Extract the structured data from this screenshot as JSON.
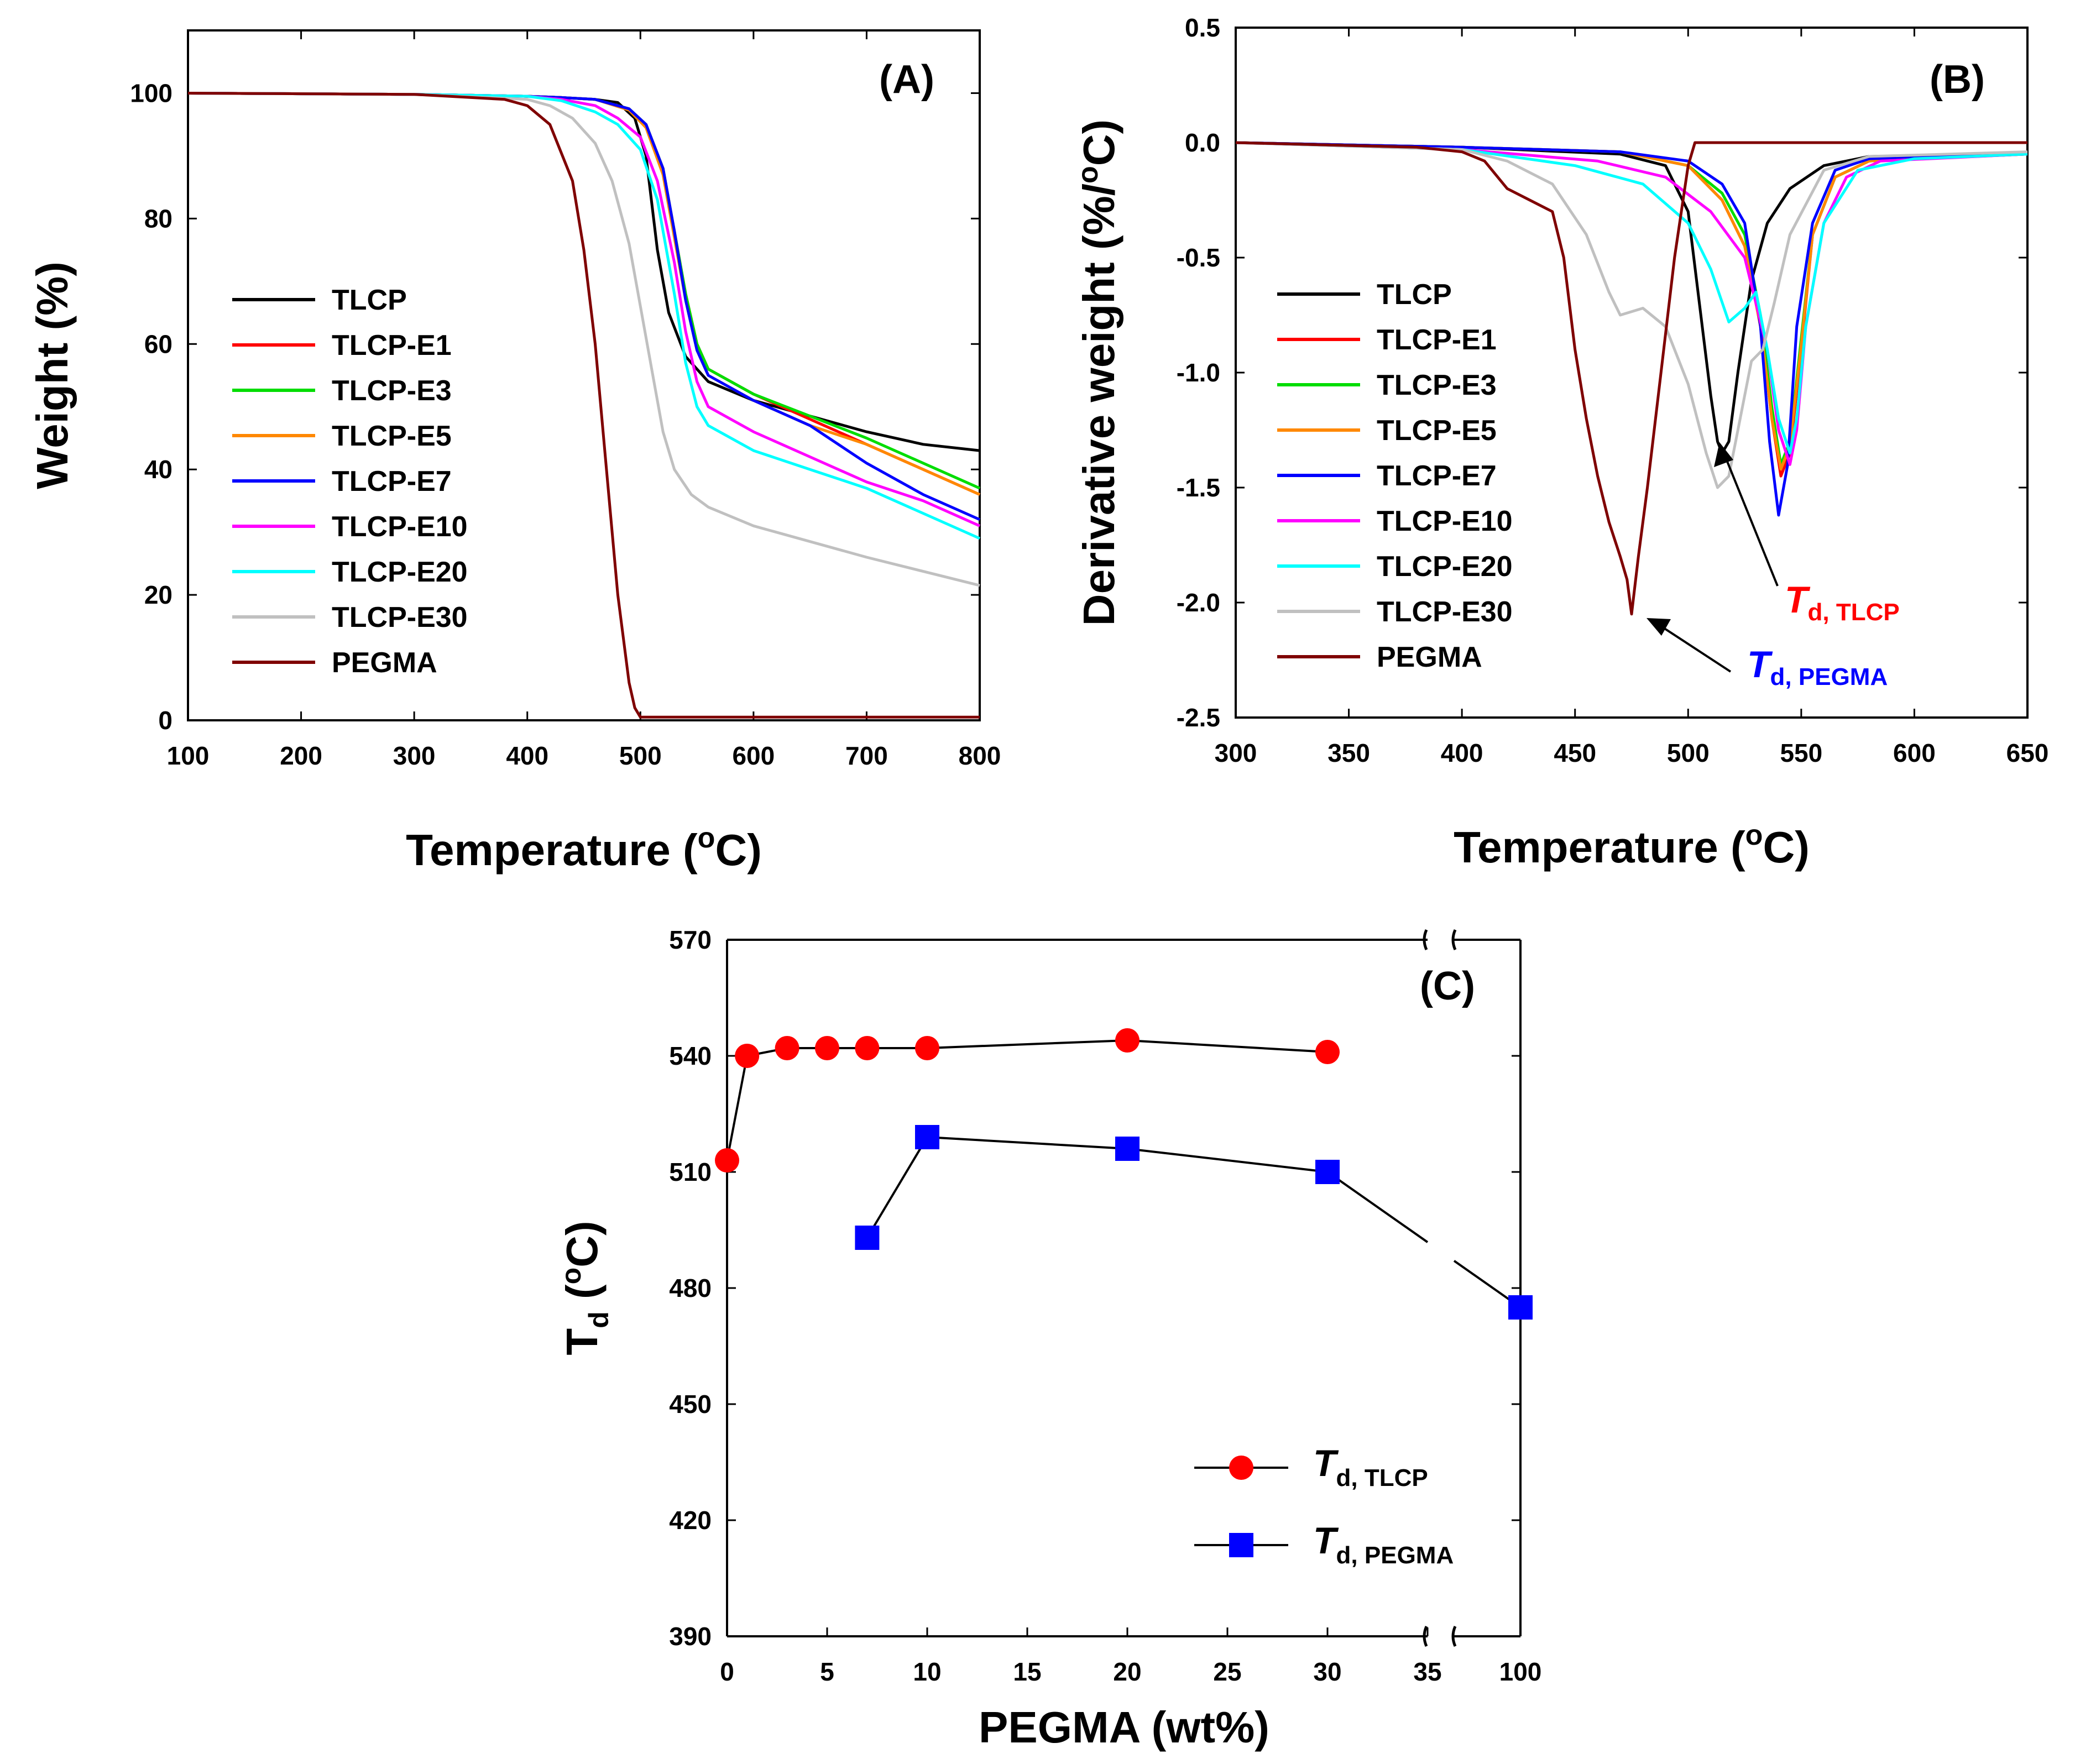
{
  "colors": {
    "TLCP": "#000000",
    "TLCP-E1": "#ff0000",
    "TLCP-E3": "#00dd00",
    "TLCP-E5": "#ff8800",
    "TLCP-E7": "#0000ff",
    "TLCP-E10": "#ff00ff",
    "TLCP-E20": "#00ffff",
    "TLCP-E30": "#c0c0c0",
    "PEGMA": "#7f0000",
    "td_tlcp": "#ff0000",
    "td_pegma": "#0000ff"
  },
  "chart_data": [
    {
      "id": "A",
      "type": "line",
      "panel_label": "(A)",
      "xlabel": "Temperature (oC)",
      "ylabel": "Weight (%)",
      "xlim": [
        100,
        800
      ],
      "ylim": [
        0,
        110
      ],
      "xticks": [
        100,
        200,
        300,
        400,
        500,
        600,
        700,
        800
      ],
      "yticks": [
        0,
        20,
        40,
        60,
        80,
        100
      ],
      "legend_position": "left",
      "series": [
        {
          "name": "TLCP",
          "x": [
            100,
            300,
            400,
            430,
            460,
            480,
            495,
            505,
            515,
            525,
            540,
            560,
            600,
            650,
            700,
            750,
            800
          ],
          "y": [
            100,
            99.8,
            99.5,
            99.3,
            99,
            98.5,
            96,
            90,
            75,
            65,
            58,
            54,
            51,
            48.5,
            46,
            44,
            43
          ]
        },
        {
          "name": "TLCP-E1",
          "x": [
            100,
            300,
            400,
            430,
            460,
            490,
            505,
            520,
            530,
            540,
            550,
            560,
            600,
            650,
            700,
            750,
            800
          ],
          "y": [
            100,
            99.8,
            99.5,
            99.3,
            99,
            97.5,
            95,
            88,
            78,
            68,
            60,
            56,
            52,
            48,
            44,
            40,
            36
          ]
        },
        {
          "name": "TLCP-E3",
          "x": [
            100,
            300,
            400,
            430,
            460,
            490,
            505,
            520,
            530,
            540,
            550,
            560,
            600,
            650,
            700,
            750,
            800
          ],
          "y": [
            100,
            99.8,
            99.5,
            99.3,
            99,
            97.5,
            95,
            88,
            78,
            68,
            60,
            56,
            52,
            48.5,
            45,
            41,
            37
          ]
        },
        {
          "name": "TLCP-E5",
          "x": [
            100,
            300,
            400,
            430,
            460,
            490,
            505,
            520,
            530,
            540,
            550,
            560,
            600,
            650,
            700,
            750,
            800
          ],
          "y": [
            100,
            99.8,
            99.5,
            99.3,
            99,
            97.3,
            94.5,
            87,
            77,
            67,
            59,
            55,
            51,
            47,
            44,
            40,
            36
          ]
        },
        {
          "name": "TLCP-E7",
          "x": [
            100,
            300,
            400,
            430,
            460,
            490,
            505,
            520,
            530,
            540,
            550,
            560,
            600,
            650,
            700,
            750,
            800
          ],
          "y": [
            100,
            99.8,
            99.5,
            99.3,
            99,
            97.5,
            95,
            88,
            78,
            67,
            59,
            55,
            51,
            47,
            41,
            36,
            32
          ]
        },
        {
          "name": "TLCP-E10",
          "x": [
            100,
            300,
            400,
            430,
            460,
            480,
            500,
            515,
            530,
            540,
            550,
            560,
            600,
            650,
            700,
            750,
            800
          ],
          "y": [
            100,
            99.8,
            99.5,
            99,
            98,
            96,
            93,
            86,
            73,
            62,
            54,
            50,
            46,
            42,
            38,
            35,
            31
          ]
        },
        {
          "name": "TLCP-E20",
          "x": [
            100,
            300,
            400,
            430,
            460,
            480,
            500,
            515,
            530,
            540,
            550,
            560,
            600,
            650,
            700,
            750,
            800
          ],
          "y": [
            100,
            99.8,
            99.5,
            98.8,
            97,
            95,
            91,
            83,
            68,
            57,
            50,
            47,
            43,
            40,
            37,
            33,
            29
          ]
        },
        {
          "name": "TLCP-E30",
          "x": [
            100,
            300,
            400,
            420,
            440,
            460,
            475,
            490,
            500,
            510,
            520,
            530,
            545,
            560,
            600,
            700,
            800
          ],
          "y": [
            100,
            99.8,
            99,
            98,
            96,
            92,
            86,
            76,
            66,
            56,
            46,
            40,
            36,
            34,
            31,
            26,
            21.5
          ]
        },
        {
          "name": "PEGMA",
          "x": [
            100,
            300,
            380,
            400,
            420,
            440,
            450,
            460,
            470,
            480,
            490,
            495,
            500,
            505,
            600,
            800
          ],
          "y": [
            100,
            99.8,
            99,
            98,
            95,
            86,
            75,
            60,
            40,
            20,
            6,
            2,
            0.5,
            0.5,
            0.5,
            0.5
          ]
        }
      ]
    },
    {
      "id": "B",
      "type": "line",
      "panel_label": "(B)",
      "xlabel": "Temperature (oC)",
      "ylabel": "Derivative weight (%/oC)",
      "xlim": [
        300,
        650
      ],
      "ylim": [
        -2.5,
        0.5
      ],
      "xticks": [
        300,
        350,
        400,
        450,
        500,
        550,
        600,
        650
      ],
      "yticks": [
        -2.5,
        -2.0,
        -1.5,
        -1.0,
        -0.5,
        0.0,
        0.5
      ],
      "legend_position": "left",
      "series": [
        {
          "name": "TLCP",
          "x": [
            300,
            400,
            470,
            490,
            500,
            505,
            510,
            513,
            515,
            518,
            522,
            528,
            535,
            545,
            560,
            580,
            650
          ],
          "y": [
            0,
            -0.02,
            -0.05,
            -0.1,
            -0.3,
            -0.7,
            -1.1,
            -1.3,
            -1.35,
            -1.3,
            -1.0,
            -0.6,
            -0.35,
            -0.2,
            -0.1,
            -0.06,
            -0.05
          ]
        },
        {
          "name": "TLCP-E1",
          "x": [
            300,
            400,
            470,
            500,
            515,
            525,
            532,
            537,
            541,
            545,
            550,
            555,
            565,
            580,
            650
          ],
          "y": [
            0,
            -0.02,
            -0.04,
            -0.1,
            -0.25,
            -0.45,
            -0.8,
            -1.2,
            -1.45,
            -1.35,
            -0.9,
            -0.4,
            -0.15,
            -0.08,
            -0.05
          ]
        },
        {
          "name": "TLCP-E3",
          "x": [
            300,
            400,
            470,
            500,
            515,
            525,
            532,
            537,
            541,
            545,
            550,
            555,
            565,
            580,
            650
          ],
          "y": [
            0,
            -0.02,
            -0.04,
            -0.1,
            -0.22,
            -0.4,
            -0.75,
            -1.15,
            -1.4,
            -1.3,
            -0.85,
            -0.4,
            -0.15,
            -0.08,
            -0.05
          ]
        },
        {
          "name": "TLCP-E5",
          "x": [
            300,
            400,
            470,
            500,
            515,
            525,
            532,
            537,
            541,
            545,
            550,
            555,
            565,
            580,
            650
          ],
          "y": [
            0,
            -0.02,
            -0.04,
            -0.1,
            -0.25,
            -0.45,
            -0.8,
            -1.2,
            -1.42,
            -1.32,
            -0.88,
            -0.4,
            -0.15,
            -0.08,
            -0.05
          ]
        },
        {
          "name": "TLCP-E7",
          "x": [
            300,
            400,
            470,
            500,
            515,
            525,
            532,
            536,
            540,
            544,
            548,
            555,
            565,
            580,
            650
          ],
          "y": [
            0,
            -0.02,
            -0.04,
            -0.08,
            -0.18,
            -0.35,
            -0.8,
            -1.3,
            -1.62,
            -1.4,
            -0.8,
            -0.35,
            -0.12,
            -0.07,
            -0.05
          ]
        },
        {
          "name": "TLCP-E10",
          "x": [
            300,
            400,
            460,
            490,
            510,
            525,
            535,
            540,
            545,
            548,
            552,
            560,
            570,
            585,
            650
          ],
          "y": [
            0,
            -0.03,
            -0.08,
            -0.15,
            -0.3,
            -0.5,
            -0.9,
            -1.25,
            -1.4,
            -1.25,
            -0.8,
            -0.35,
            -0.15,
            -0.08,
            -0.05
          ]
        },
        {
          "name": "TLCP-E20",
          "x": [
            300,
            400,
            450,
            480,
            500,
            510,
            518,
            525,
            530,
            535,
            540,
            545,
            548,
            552,
            560,
            575,
            600,
            650
          ],
          "y": [
            0,
            -0.03,
            -0.1,
            -0.18,
            -0.35,
            -0.55,
            -0.78,
            -0.72,
            -0.65,
            -0.9,
            -1.2,
            -1.35,
            -1.2,
            -0.8,
            -0.35,
            -0.12,
            -0.07,
            -0.05
          ]
        },
        {
          "name": "TLCP-E30",
          "x": [
            300,
            400,
            420,
            440,
            455,
            465,
            470,
            480,
            490,
            500,
            508,
            513,
            518,
            523,
            528,
            533,
            538,
            545,
            560,
            580,
            650
          ],
          "y": [
            0,
            -0.03,
            -0.08,
            -0.18,
            -0.4,
            -0.65,
            -0.75,
            -0.72,
            -0.8,
            -1.05,
            -1.35,
            -1.5,
            -1.45,
            -1.2,
            -0.95,
            -0.9,
            -0.7,
            -0.4,
            -0.12,
            -0.06,
            -0.04
          ]
        },
        {
          "name": "PEGMA",
          "x": [
            300,
            380,
            400,
            410,
            420,
            430,
            440,
            445,
            450,
            455,
            460,
            465,
            470,
            473,
            475,
            478,
            482,
            488,
            494,
            500,
            503,
            505,
            510,
            550,
            650
          ],
          "y": [
            0,
            -0.02,
            -0.04,
            -0.08,
            -0.2,
            -0.25,
            -0.3,
            -0.5,
            -0.9,
            -1.2,
            -1.45,
            -1.65,
            -1.8,
            -1.9,
            -2.05,
            -1.8,
            -1.5,
            -1.0,
            -0.5,
            -0.1,
            0.0,
            0.0,
            0.0,
            0.0,
            0.0
          ]
        }
      ],
      "annotations": [
        {
          "text": "T",
          "subscript": "d, TLCP",
          "color": "#ff0000",
          "point": [
            515,
            -1.35
          ]
        },
        {
          "text": "T",
          "subscript": "d, PEGMA",
          "color": "#0000ff",
          "point": [
            475,
            -2.05
          ]
        }
      ]
    },
    {
      "id": "C",
      "type": "scatter",
      "panel_label": "(C)",
      "xlabel": "PEGMA (wt%)",
      "ylabel": "Td (oC)",
      "ylim": [
        390,
        570
      ],
      "yticks": [
        390,
        420,
        450,
        480,
        510,
        540,
        570
      ],
      "xticks": [
        0,
        5,
        10,
        15,
        20,
        25,
        30,
        35,
        100
      ],
      "axis_break": {
        "main_range": [
          0,
          35
        ],
        "break_tick": 100
      },
      "legend_position": "bottom-right",
      "series": [
        {
          "name": "Td, TLCP",
          "marker": "circle",
          "x": [
            0,
            1,
            3,
            5,
            7,
            10,
            20,
            30
          ],
          "y": [
            513,
            540,
            542,
            542,
            542,
            542,
            544,
            541
          ]
        },
        {
          "name": "Td, PEGMA",
          "marker": "square",
          "x": [
            7,
            10,
            20,
            30,
            100
          ],
          "y": [
            493,
            519,
            516,
            510,
            475
          ]
        }
      ]
    }
  ],
  "panelA": {
    "label": "(A)",
    "xlabel_main": "Temperature (",
    "xlabel_sup": "o",
    "xlabel_end": "C)",
    "ylabel": "Weight (%)",
    "legend": [
      "TLCP",
      "TLCP-E1",
      "TLCP-E3",
      "TLCP-E5",
      "TLCP-E7",
      "TLCP-E10",
      "TLCP-E20",
      "TLCP-E30",
      "PEGMA"
    ]
  },
  "panelB": {
    "label": "(B)",
    "xlabel_main": "Temperature (",
    "xlabel_sup": "o",
    "xlabel_end": "C)",
    "ylabel_main": "Derivative weight (%/",
    "ylabel_sup": "o",
    "ylabel_end": "C)",
    "legend": [
      "TLCP",
      "TLCP-E1",
      "TLCP-E3",
      "TLCP-E5",
      "TLCP-E7",
      "TLCP-E10",
      "TLCP-E20",
      "TLCP-E30",
      "PEGMA"
    ],
    "ann_tlcp_T": "T",
    "ann_tlcp_sub": "d, TLCP",
    "ann_pegma_T": "T",
    "ann_pegma_sub": "d, PEGMA"
  },
  "panelC": {
    "label": "(C)",
    "xlabel": "PEGMA (wt%)",
    "ylabel_T": "T",
    "ylabel_sub": "d",
    "ylabel_paren": " (",
    "ylabel_sup": "o",
    "ylabel_end": "C)",
    "legend_tlcp_T": "T",
    "legend_tlcp_sub": "d, TLCP",
    "legend_pegma_T": "T",
    "legend_pegma_sub": "d, PEGMA"
  }
}
